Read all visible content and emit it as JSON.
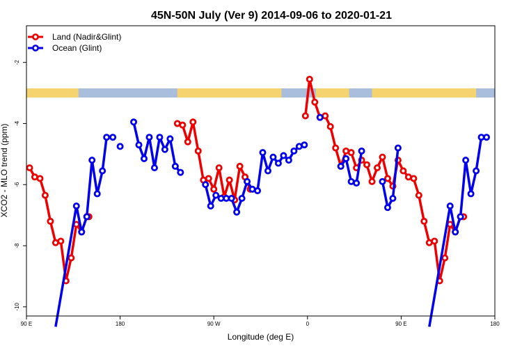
{
  "chart_data": {
    "type": "line",
    "title": "45N-50N July (Ver 9)   2014-09-06 to 2020-01-21",
    "xlabel": "Longitude (deg E)",
    "ylabel": "XCO2 - MLO trend (ppm)",
    "xlim": [
      90,
      540
    ],
    "ylim": [
      -10.3,
      -0.8
    ],
    "x_ticks": [
      {
        "value": 90,
        "label": "90 E"
      },
      {
        "value": 180,
        "label": "180"
      },
      {
        "value": 270,
        "label": "90 W"
      },
      {
        "value": 360,
        "label": "0"
      },
      {
        "value": 450,
        "label": "90 E"
      },
      {
        "value": 540,
        "label": "180"
      }
    ],
    "y_ticks": [
      {
        "value": -2,
        "label": "-2"
      },
      {
        "value": -4,
        "label": "-4"
      },
      {
        "value": -6,
        "label": "-6"
      },
      {
        "value": -8,
        "label": "-8"
      },
      {
        "value": -10,
        "label": "-10"
      }
    ],
    "grid": false,
    "legend_position": "top-left",
    "landmask_band": {
      "y_range": [
        -3.15,
        -2.85
      ],
      "land_color": "#f5d36e",
      "ocean_color": "#a9bedd",
      "land_segments": [
        [
          90,
          140
        ],
        [
          235,
          335
        ],
        [
          368,
          400
        ],
        [
          422,
          522
        ]
      ]
    },
    "series": [
      {
        "name": "Land (Nadir&Glint)",
        "color": "#ee0000",
        "segments": [
          [
            [
              93,
              -5.45
            ],
            [
              98,
              -5.75
            ],
            [
              103,
              -5.8
            ],
            [
              108,
              -6.35
            ],
            [
              113,
              -7.2
            ],
            [
              118,
              -7.9
            ],
            [
              123,
              -7.85
            ],
            [
              128,
              -9.15
            ],
            [
              133,
              -8.4
            ],
            [
              138,
              -7.3
            ],
            [
              143,
              -7.55
            ],
            [
              148,
              -7.05
            ],
            [
              150,
              -7.05
            ]
          ],
          [
            [
              235,
              -4.0
            ],
            [
              240,
              -4.05
            ],
            [
              245,
              -4.6
            ],
            [
              250,
              -3.95
            ],
            [
              255,
              -4.9
            ],
            [
              260,
              -5.85
            ],
            [
              265,
              -5.8
            ],
            [
              270,
              -6.15
            ],
            [
              275,
              -5.45
            ],
            [
              280,
              -6.4
            ],
            [
              285,
              -5.85
            ],
            [
              290,
              -6.5
            ],
            [
              295,
              -5.4
            ],
            [
              300,
              -5.75
            ],
            [
              305,
              -6.15
            ]
          ],
          [
            [
              358,
              -3.75
            ],
            [
              362,
              -2.55
            ],
            [
              367,
              -3.3
            ],
            [
              372,
              -3.8
            ],
            [
              377,
              -3.75
            ],
            [
              382,
              -4.1
            ],
            [
              387,
              -4.8
            ],
            [
              392,
              -5.4
            ],
            [
              397,
              -4.9
            ],
            [
              402,
              -4.95
            ],
            [
              407,
              -5.45
            ],
            [
              412,
              -5.2
            ],
            [
              417,
              -5.35
            ],
            [
              422,
              -5.9
            ],
            [
              427,
              -5.45
            ],
            [
              432,
              -5.1
            ],
            [
              437,
              -5.8
            ],
            [
              442,
              -6.05
            ],
            [
              447,
              -5.2
            ],
            [
              452,
              -5.55
            ],
            [
              457,
              -5.75
            ],
            [
              462,
              -5.8
            ],
            [
              467,
              -6.35
            ],
            [
              472,
              -7.2
            ],
            [
              477,
              -7.9
            ],
            [
              482,
              -7.85
            ],
            [
              487,
              -9.15
            ],
            [
              492,
              -8.4
            ],
            [
              497,
              -7.3
            ],
            [
              502,
              -7.55
            ],
            [
              507,
              -7.05
            ],
            [
              510,
              -7.05
            ]
          ]
        ]
      },
      {
        "name": "Ocean (Glint)",
        "color": "#0000ee",
        "segments": [
          [
            [
              118,
              -10.65
            ],
            [
              138,
              -6.7
            ],
            [
              143,
              -7.55
            ],
            [
              148,
              -7.05
            ],
            [
              153,
              -5.2
            ],
            [
              158,
              -6.3
            ],
            [
              163,
              -5.55
            ],
            [
              167,
              -4.45
            ],
            [
              173,
              -4.45
            ]
          ],
          [
            [
              180,
              -4.75
            ]
          ],
          [
            [
              193,
              -3.95
            ],
            [
              198,
              -4.7
            ],
            [
              203,
              -5.15
            ],
            [
              208,
              -4.45
            ],
            [
              213,
              -5.45
            ],
            [
              218,
              -4.45
            ],
            [
              223,
              -4.85
            ],
            [
              228,
              -4.5
            ],
            [
              233,
              -5.4
            ],
            [
              238,
              -5.6
            ]
          ],
          [
            [
              262,
              -6.0
            ],
            [
              267,
              -6.7
            ],
            [
              272,
              -6.35
            ],
            [
              277,
              -6.45
            ],
            [
              282,
              -6.45
            ],
            [
              287,
              -6.45
            ],
            [
              292,
              -6.9
            ],
            [
              297,
              -6.45
            ],
            [
              302,
              -5.9
            ],
            [
              307,
              -6.15
            ],
            [
              312,
              -6.2
            ],
            [
              317,
              -4.95
            ],
            [
              322,
              -5.55
            ],
            [
              327,
              -5.1
            ],
            [
              332,
              -5.3
            ],
            [
              337,
              -5.05
            ],
            [
              342,
              -5.2
            ],
            [
              347,
              -4.9
            ],
            [
              352,
              -4.75
            ],
            [
              357,
              -4.7
            ]
          ],
          [
            [
              372,
              -3.8
            ]
          ],
          [
            [
              392,
              -5.4
            ],
            [
              397,
              -5.15
            ],
            [
              402,
              -5.9
            ],
            [
              407,
              -5.95
            ],
            [
              412,
              -4.9
            ]
          ],
          [
            [
              432,
              -5.9
            ],
            [
              437,
              -6.75
            ],
            [
              442,
              -6.45
            ],
            [
              447,
              -4.8
            ]
          ],
          [
            [
              477,
              -10.65
            ],
            [
              497,
              -6.7
            ],
            [
              502,
              -7.55
            ],
            [
              507,
              -7.05
            ],
            [
              512,
              -5.2
            ],
            [
              517,
              -6.3
            ],
            [
              522,
              -5.55
            ],
            [
              527,
              -4.45
            ],
            [
              532,
              -4.45
            ]
          ]
        ]
      }
    ]
  }
}
